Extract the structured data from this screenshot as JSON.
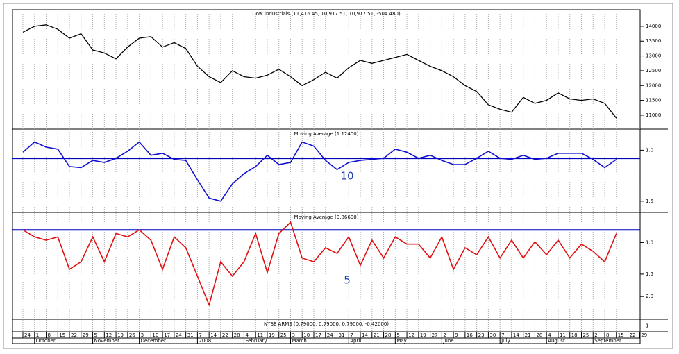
{
  "x_axis": {
    "days": [
      "24",
      "1",
      "8",
      "15",
      "22",
      "29",
      "5",
      "12",
      "19",
      "26",
      "3",
      "10",
      "17",
      "24",
      "31",
      "7",
      "14",
      "22",
      "28",
      "4",
      "11",
      "19",
      "25",
      "3",
      "10",
      "17",
      "24",
      "31",
      "7",
      "14",
      "21",
      "28",
      "5",
      "12",
      "19",
      "27",
      "2",
      "9",
      "16",
      "23",
      "30",
      "7",
      "14",
      "21",
      "28",
      "4",
      "11",
      "18",
      "25",
      "2",
      "8",
      "15",
      "22",
      "29"
    ],
    "months": [
      null,
      "October",
      null,
      null,
      null,
      null,
      "November",
      null,
      null,
      null,
      "December",
      null,
      null,
      null,
      null,
      "2008",
      null,
      null,
      null,
      "February",
      null,
      null,
      null,
      "March",
      null,
      null,
      null,
      null,
      "April",
      null,
      null,
      null,
      "May",
      null,
      null,
      null,
      "June",
      null,
      null,
      null,
      null,
      "July",
      null,
      null,
      null,
      "August",
      null,
      null,
      null,
      "September",
      null,
      null,
      null,
      null
    ]
  },
  "chart_data": [
    {
      "type": "line",
      "title": "Dow Industrials (11,416.45, 10,917.51, 10,917.51, -504.480)",
      "color": "#000000",
      "grid": true,
      "ylim": [
        10530,
        14560
      ],
      "yticks": [
        11000,
        11500,
        12000,
        12500,
        13000,
        13500,
        14000
      ],
      "values": [
        13800,
        14000,
        14050,
        13900,
        13600,
        13750,
        13200,
        13100,
        12900,
        13300,
        13600,
        13650,
        13300,
        13450,
        13250,
        12650,
        12300,
        12100,
        12500,
        12300,
        12250,
        12350,
        12550,
        12300,
        12000,
        12200,
        12450,
        12250,
        12600,
        12850,
        12750,
        12850,
        12950,
        13050,
        12850,
        12650,
        12500,
        12300,
        12000,
        11800,
        11350,
        11200,
        11100,
        11600,
        11400,
        11500,
        11750,
        11550,
        11500,
        11550,
        11400,
        10900,
        null,
        null
      ]
    },
    {
      "type": "line",
      "title": "Moving Average (1.12400)",
      "annotation": "10",
      "color": "#1010d0",
      "grid": true,
      "inverted": true,
      "reference_line": 1.08,
      "ylim": [
        0.8,
        1.61
      ],
      "yticks": [
        {
          "value": 1,
          "label": "1.0"
        },
        {
          "value": 1.5,
          "label": "1.5"
        }
      ],
      "values": [
        1.02,
        0.92,
        0.97,
        0.99,
        1.16,
        1.17,
        1.1,
        1.12,
        1.08,
        1.01,
        0.92,
        1.05,
        1.03,
        1.09,
        1.1,
        1.29,
        1.47,
        1.5,
        1.33,
        1.23,
        1.16,
        1.05,
        1.14,
        1.12,
        0.92,
        0.96,
        1.1,
        1.19,
        1.12,
        1.1,
        1.09,
        1.08,
        0.99,
        1.02,
        1.08,
        1.05,
        1.1,
        1.14,
        1.14,
        1.08,
        1.01,
        1.08,
        1.09,
        1.05,
        1.09,
        1.08,
        1.03,
        1.03,
        1.03,
        1.09,
        1.17,
        1.09,
        null,
        null
      ]
    },
    {
      "type": "line",
      "title": "Moving Average (0.86600)",
      "annotation": "5",
      "color": "#e01010",
      "grid": true,
      "inverted": true,
      "log": true,
      "reference_line": 0.85,
      "ylim": [
        0.685,
        2.68
      ],
      "yticks": [
        {
          "value": 1,
          "label": "1.0"
        },
        {
          "value": 1.5,
          "label": "1.5"
        },
        {
          "value": 2,
          "label": "2.0"
        }
      ],
      "values": [
        0.85,
        0.93,
        0.97,
        0.93,
        1.41,
        1.28,
        0.93,
        1.28,
        0.89,
        0.93,
        0.85,
        0.97,
        1.41,
        0.93,
        1.07,
        1.54,
        2.23,
        1.28,
        1.54,
        1.28,
        0.89,
        1.47,
        0.89,
        0.77,
        1.22,
        1.28,
        1.07,
        1.15,
        0.93,
        1.34,
        0.97,
        1.22,
        0.93,
        1.02,
        1.02,
        1.22,
        0.93,
        1.41,
        1.07,
        1.17,
        0.93,
        1.22,
        0.97,
        1.22,
        0.99,
        1.17,
        0.97,
        1.22,
        1.02,
        1.12,
        1.28,
        0.89,
        null,
        null
      ]
    },
    {
      "type": "line",
      "title": "NYSE ARMS (0.79000, 0.79000, 0.79000, -0.42000)",
      "color": "#000000",
      "grid": true,
      "ylim": [
        0.3,
        1.7
      ],
      "yticks": [
        1
      ],
      "values": []
    }
  ]
}
